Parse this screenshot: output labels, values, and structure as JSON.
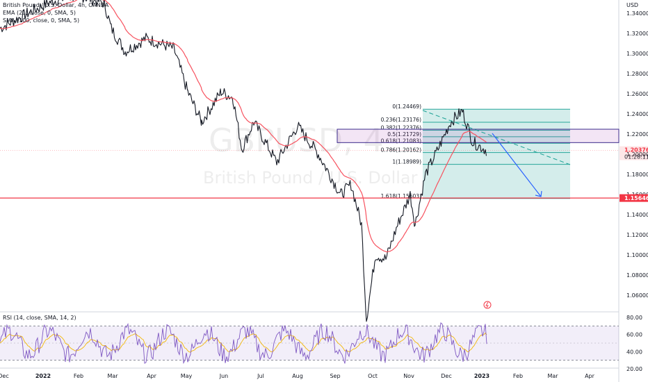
{
  "legend": {
    "symbol": "British Pound / U.S. Dollar, 4h, OANDA",
    "ema": "EMA (21, close, 0, SMA, 5)",
    "sma": "SMA (100, close, 0, SMA, 5)",
    "rsi": "RSI (14, close, SMA, 14, 2)"
  },
  "watermark": {
    "ticker": "GBPUSD, 4",
    "name": "British Pound / U.S. Dollar"
  },
  "price_axis": {
    "currency": "USD",
    "ticks": [
      "1.34000",
      "1.32000",
      "1.30000",
      "1.28000",
      "1.26000",
      "1.24000",
      "1.22000",
      "1.20000",
      "1.18000",
      "1.16000",
      "1.14000",
      "1.12000",
      "1.10000",
      "1.08000",
      "1.06000"
    ]
  },
  "rsi_axis": {
    "ticks": [
      "80.00",
      "60.00",
      "40.00",
      "20.00"
    ]
  },
  "time_axis": [
    "Dec",
    "2022",
    "Feb",
    "Mar",
    "Apr",
    "May",
    "Jun",
    "Jul",
    "Aug",
    "Sep",
    "Oct",
    "Nov",
    "Dec",
    "2023",
    "Feb",
    "Mar",
    "Apr"
  ],
  "price_tags": {
    "last": {
      "value": "1.20376",
      "countdown": "01:28:11",
      "color": "#089981"
    },
    "level": {
      "value": "1.15646",
      "color": "#f23645"
    }
  },
  "fib_levels": [
    {
      "label": "0(1.24469)",
      "value": 1.24469
    },
    {
      "label": "0.236(1.23176)",
      "value": 1.23176
    },
    {
      "label": "0.382(1.22376)",
      "value": 1.22376
    },
    {
      "label": "0.5(1.21729)",
      "value": 1.21729
    },
    {
      "label": "0.618(1.21083)",
      "value": 1.21083
    },
    {
      "label": "0.786(1.20162)",
      "value": 1.20162
    },
    {
      "label": "1(1.18989)",
      "value": 1.18989
    },
    {
      "label": "1.618(1.15603)",
      "value": 1.15603
    }
  ],
  "colors": {
    "candle": "#131722",
    "ema": "#f7525f",
    "rsi": "#7e57c2",
    "rsi_ma": "#f2b705",
    "fib_fill": "#26a69a",
    "supply_zone": "#9c27b0",
    "support_line": "#f23645",
    "arrow": "#2962ff"
  },
  "chart_data": {
    "type": "line",
    "title": "British Pound / U.S. Dollar, 4h, OANDA",
    "xlabel": "",
    "ylabel": "USD",
    "ylim": [
      1.05,
      1.35
    ],
    "series": [
      {
        "name": "GBPUSD",
        "x": [
          "Dec",
          "2022",
          "Feb",
          "Mar",
          "Apr",
          "May",
          "Jun",
          "Jul",
          "Aug",
          "Sep",
          "Oct",
          "Nov",
          "Dec",
          "2023"
        ],
        "values": [
          1.328,
          1.345,
          1.356,
          1.338,
          1.309,
          1.292,
          1.25,
          1.224,
          1.205,
          1.195,
          1.12,
          1.14,
          1.18,
          1.2038
        ]
      }
    ],
    "points": [
      {
        "date": "Nov 2021",
        "price": 1.325
      },
      {
        "date": "Jan 2022",
        "price": 1.352
      },
      {
        "date": "Feb 2022",
        "price": 1.358
      },
      {
        "date": "Mar 2022",
        "price": 1.305
      },
      {
        "date": "Apr 2022",
        "price": 1.305
      },
      {
        "date": "May 2022",
        "price": 1.233
      },
      {
        "date": "Jun 2022",
        "price": 1.262
      },
      {
        "date": "Jul 2022",
        "price": 1.192
      },
      {
        "date": "Aug 2022",
        "price": 1.228
      },
      {
        "date": "Sep 2022",
        "price": 1.135
      },
      {
        "date": "Sep 26 2022",
        "price": 1.036
      },
      {
        "date": "Oct 2022",
        "price": 1.135
      },
      {
        "date": "Nov 2022",
        "price": 1.13
      },
      {
        "date": "Dec 2022",
        "price": 1.243
      },
      {
        "date": "Jan 2023",
        "price": 1.2038
      }
    ],
    "support_level": 1.15646,
    "supply_zone": [
      1.2115,
      1.2248
    ],
    "rsi": {
      "ylim": [
        20,
        85
      ],
      "levels": [
        70,
        50,
        30
      ],
      "last": 52
    }
  }
}
